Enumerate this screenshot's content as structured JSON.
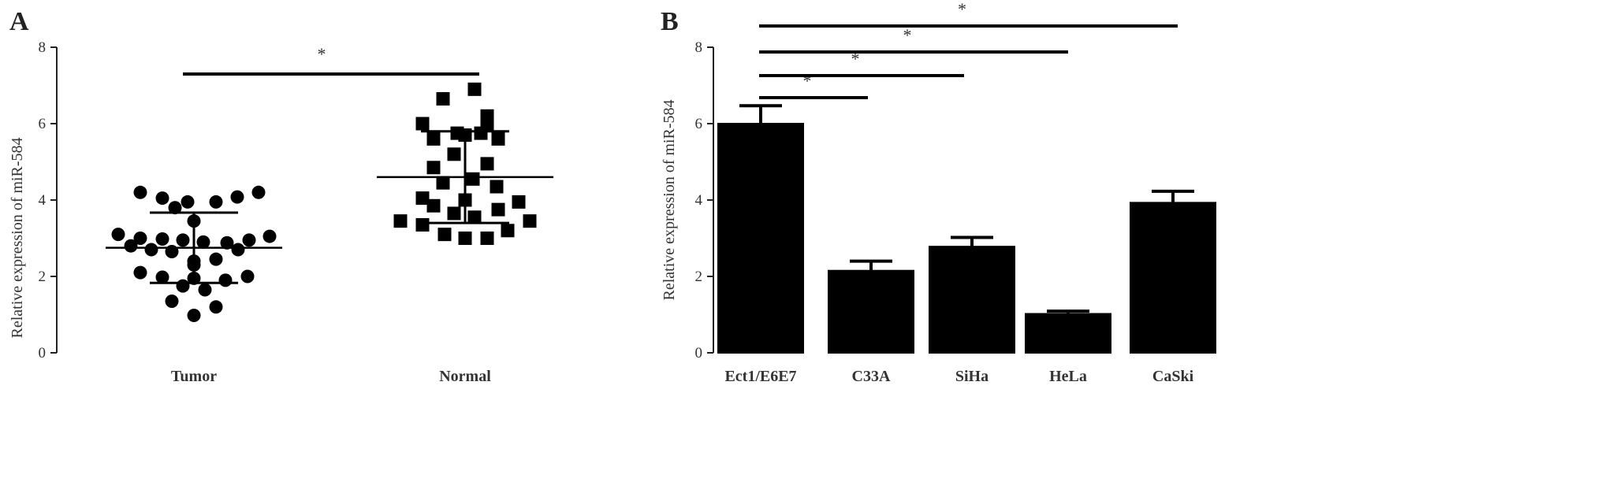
{
  "chart_data": [
    {
      "panel_label": "A",
      "type": "scatter",
      "ylabel": "Relative expression of miR-584",
      "ylim": [
        0,
        8
      ],
      "yticks": [
        0,
        2,
        4,
        6,
        8
      ],
      "categories": [
        "Tumor",
        "Normal"
      ],
      "series": [
        {
          "category": "Tumor",
          "marker": "circle",
          "mean": 2.75,
          "sd": 0.92,
          "values": [
            4.2,
            4.05,
            3.95,
            3.95,
            4.08,
            4.2,
            3.8,
            3.45,
            3.1,
            3.0,
            2.98,
            2.95,
            2.9,
            2.88,
            2.95,
            3.05,
            2.8,
            2.7,
            2.65,
            2.7,
            2.45,
            2.4,
            2.3,
            2.1,
            1.98,
            1.95,
            1.9,
            2.0,
            1.75,
            1.65,
            1.35,
            1.2,
            0.98
          ]
        },
        {
          "category": "Normal",
          "marker": "square",
          "mean": 4.6,
          "sd": 1.2,
          "values": [
            6.9,
            6.65,
            6.2,
            6.0,
            5.95,
            5.75,
            5.75,
            5.7,
            5.6,
            5.6,
            5.2,
            4.95,
            4.85,
            4.55,
            4.45,
            4.35,
            4.05,
            4.0,
            3.95,
            3.85,
            3.75,
            3.65,
            3.55,
            3.45,
            3.45,
            3.35,
            3.2,
            3.1,
            3.0,
            3.0
          ]
        }
      ],
      "significance": [
        {
          "from": "Tumor",
          "to": "Normal",
          "label": "*"
        }
      ]
    },
    {
      "panel_label": "B",
      "type": "bar",
      "ylabel": "Relative expression of miR-584",
      "ylim": [
        0,
        8
      ],
      "yticks": [
        0,
        2,
        4,
        6,
        8
      ],
      "categories": [
        "Ect1/E6E7",
        "C33A",
        "SiHa",
        "HeLa",
        "CaSki"
      ],
      "values": [
        6.0,
        2.15,
        2.78,
        1.02,
        3.93
      ],
      "errors": [
        0.47,
        0.25,
        0.24,
        0.07,
        0.3
      ],
      "bar_color": "#000000",
      "significance": [
        {
          "from": "Ect1/E6E7",
          "to": "C33A",
          "label": "*"
        },
        {
          "from": "Ect1/E6E7",
          "to": "SiHa",
          "label": "*"
        },
        {
          "from": "Ect1/E6E7",
          "to": "HeLa",
          "label": "*"
        },
        {
          "from": "Ect1/E6E7",
          "to": "CaSki",
          "label": "*"
        }
      ]
    }
  ]
}
